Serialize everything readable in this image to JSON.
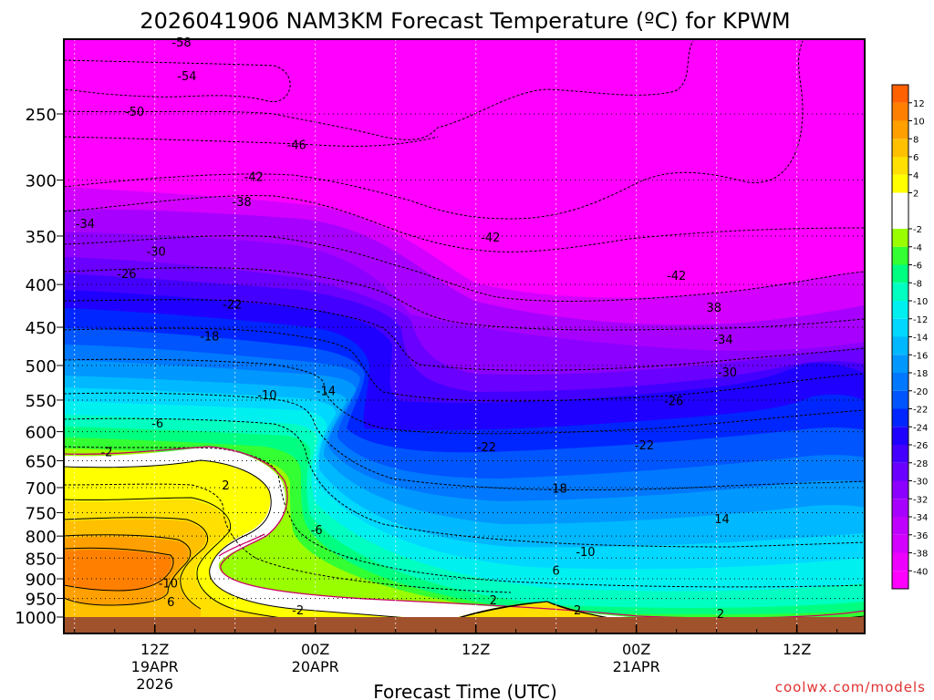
{
  "chart_data": {
    "type": "heatmap",
    "title": "2026041906 NAM3KM Forecast Temperature (ºC) for KPWM",
    "xlabel": "Forecast Time (UTC)",
    "ylabel": "",
    "y_scale": "log",
    "y_inverted": true,
    "y_ticks": [
      250,
      300,
      350,
      400,
      450,
      500,
      550,
      600,
      650,
      700,
      750,
      800,
      850,
      900,
      950,
      1000
    ],
    "x_ticks": [
      {
        "hour": 6,
        "l1": "12Z",
        "l2": "19APR",
        "l3": "2026"
      },
      {
        "hour": 18,
        "l1": "00Z",
        "l2": "20APR",
        "l3": ""
      },
      {
        "hour": 30,
        "l1": "12Z",
        "l2": "",
        "l3": ""
      },
      {
        "hour": 42,
        "l1": "00Z",
        "l2": "21APR",
        "l3": ""
      },
      {
        "hour": 54,
        "l1": "12Z",
        "l2": "",
        "l3": ""
      }
    ],
    "grid": true,
    "legend": "right",
    "colorbar": {
      "bins": [
        {
          "from": -42,
          "to": -40,
          "color": "#ff00ff"
        },
        {
          "from": -40,
          "to": -38,
          "color": "#ee00ff"
        },
        {
          "from": -38,
          "to": -36,
          "color": "#d400ff"
        },
        {
          "from": -36,
          "to": -34,
          "color": "#c000ff"
        },
        {
          "from": -34,
          "to": -32,
          "color": "#a800ff"
        },
        {
          "from": -32,
          "to": -30,
          "color": "#8c00ff"
        },
        {
          "from": -30,
          "to": -28,
          "color": "#6a00ff"
        },
        {
          "from": -28,
          "to": -26,
          "color": "#4400ff"
        },
        {
          "from": -26,
          "to": -24,
          "color": "#1f00ff"
        },
        {
          "from": -24,
          "to": -22,
          "color": "#0026ff"
        },
        {
          "from": -22,
          "to": -20,
          "color": "#0055ff"
        },
        {
          "from": -20,
          "to": -18,
          "color": "#0078ff"
        },
        {
          "from": -18,
          "to": -16,
          "color": "#0098ff"
        },
        {
          "from": -16,
          "to": -14,
          "color": "#00b8ff"
        },
        {
          "from": -14,
          "to": -12,
          "color": "#00d8ff"
        },
        {
          "from": -12,
          "to": -10,
          "color": "#00f0f0"
        },
        {
          "from": -10,
          "to": -8,
          "color": "#00ffc0"
        },
        {
          "from": -8,
          "to": -6,
          "color": "#00ff80"
        },
        {
          "from": -6,
          "to": -4,
          "color": "#33ff33"
        },
        {
          "from": -4,
          "to": -2,
          "color": "#99ff00"
        },
        {
          "from": -2,
          "to": 2,
          "color": "#ffffff"
        },
        {
          "from": 2,
          "to": 4,
          "color": "#ffff00"
        },
        {
          "from": 4,
          "to": 6,
          "color": "#ffe000"
        },
        {
          "from": 6,
          "to": 8,
          "color": "#ffc000"
        },
        {
          "from": 8,
          "to": 10,
          "color": "#ffa000"
        },
        {
          "from": 10,
          "to": 12,
          "color": "#ff8000"
        },
        {
          "from": 12,
          "to": 14,
          "color": "#ff6000"
        }
      ],
      "labels": [
        12,
        10,
        8,
        6,
        4,
        2,
        -2,
        -4,
        -6,
        -8,
        -10,
        -12,
        -14,
        -16,
        -18,
        -20,
        -22,
        -24,
        -26,
        -28,
        -30,
        -32,
        -34,
        -36,
        -38,
        -40
      ]
    },
    "contour_labels": [
      {
        "text": "-58",
        "hour": 8.0,
        "p": 205
      },
      {
        "text": "-54",
        "hour": 8.4,
        "p": 225
      },
      {
        "text": "-50",
        "hour": 4.5,
        "p": 248
      },
      {
        "text": "-46",
        "hour": 16.6,
        "p": 272
      },
      {
        "text": "-42",
        "hour": 13.4,
        "p": 297
      },
      {
        "text": "-38",
        "hour": 12.5,
        "p": 318
      },
      {
        "text": "-34",
        "hour": 0.8,
        "p": 338
      },
      {
        "text": "-30",
        "hour": 6.1,
        "p": 365
      },
      {
        "text": "-26",
        "hour": 3.9,
        "p": 388
      },
      {
        "text": "-22",
        "hour": 11.8,
        "p": 422
      },
      {
        "text": "-18",
        "hour": 10.1,
        "p": 461
      },
      {
        "text": "-10",
        "hour": 14.4,
        "p": 542
      },
      {
        "text": "-14",
        "hour": 18.8,
        "p": 536
      },
      {
        "text": "-6",
        "hour": 6.2,
        "p": 586
      },
      {
        "text": "-2",
        "hour": 2.4,
        "p": 634
      },
      {
        "text": "2",
        "hour": 11.3,
        "p": 695
      },
      {
        "text": "-6",
        "hour": 18.1,
        "p": 786
      },
      {
        "text": "-10",
        "hour": 7.0,
        "p": 910
      },
      {
        "text": "6",
        "hour": 7.2,
        "p": 958
      },
      {
        "text": "-2",
        "hour": 16.7,
        "p": 980
      },
      {
        "text": "-42",
        "hour": 31.1,
        "p": 351
      },
      {
        "text": "-42",
        "hour": 45.0,
        "p": 390
      },
      {
        "text": "38",
        "hour": 47.8,
        "p": 426
      },
      {
        "text": "-34",
        "hour": 48.5,
        "p": 465
      },
      {
        "text": "-30",
        "hour": 48.8,
        "p": 509
      },
      {
        "text": "-26",
        "hour": 44.8,
        "p": 551
      },
      {
        "text": "-22",
        "hour": 30.8,
        "p": 625
      },
      {
        "text": "-22",
        "hour": 42.6,
        "p": 622
      },
      {
        "text": "-18",
        "hour": 36.1,
        "p": 701
      },
      {
        "text": "14",
        "hour": 48.4,
        "p": 762
      },
      {
        "text": "-10",
        "hour": 38.2,
        "p": 835
      },
      {
        "text": "6",
        "hour": 36.0,
        "p": 879
      },
      {
        "text": "2",
        "hour": 31.3,
        "p": 953
      },
      {
        "text": "2",
        "hour": 37.6,
        "p": 980
      },
      {
        "text": "2",
        "hour": 48.3,
        "p": 990
      }
    ]
  },
  "footer": {
    "credit": "coolwx.com/models"
  }
}
